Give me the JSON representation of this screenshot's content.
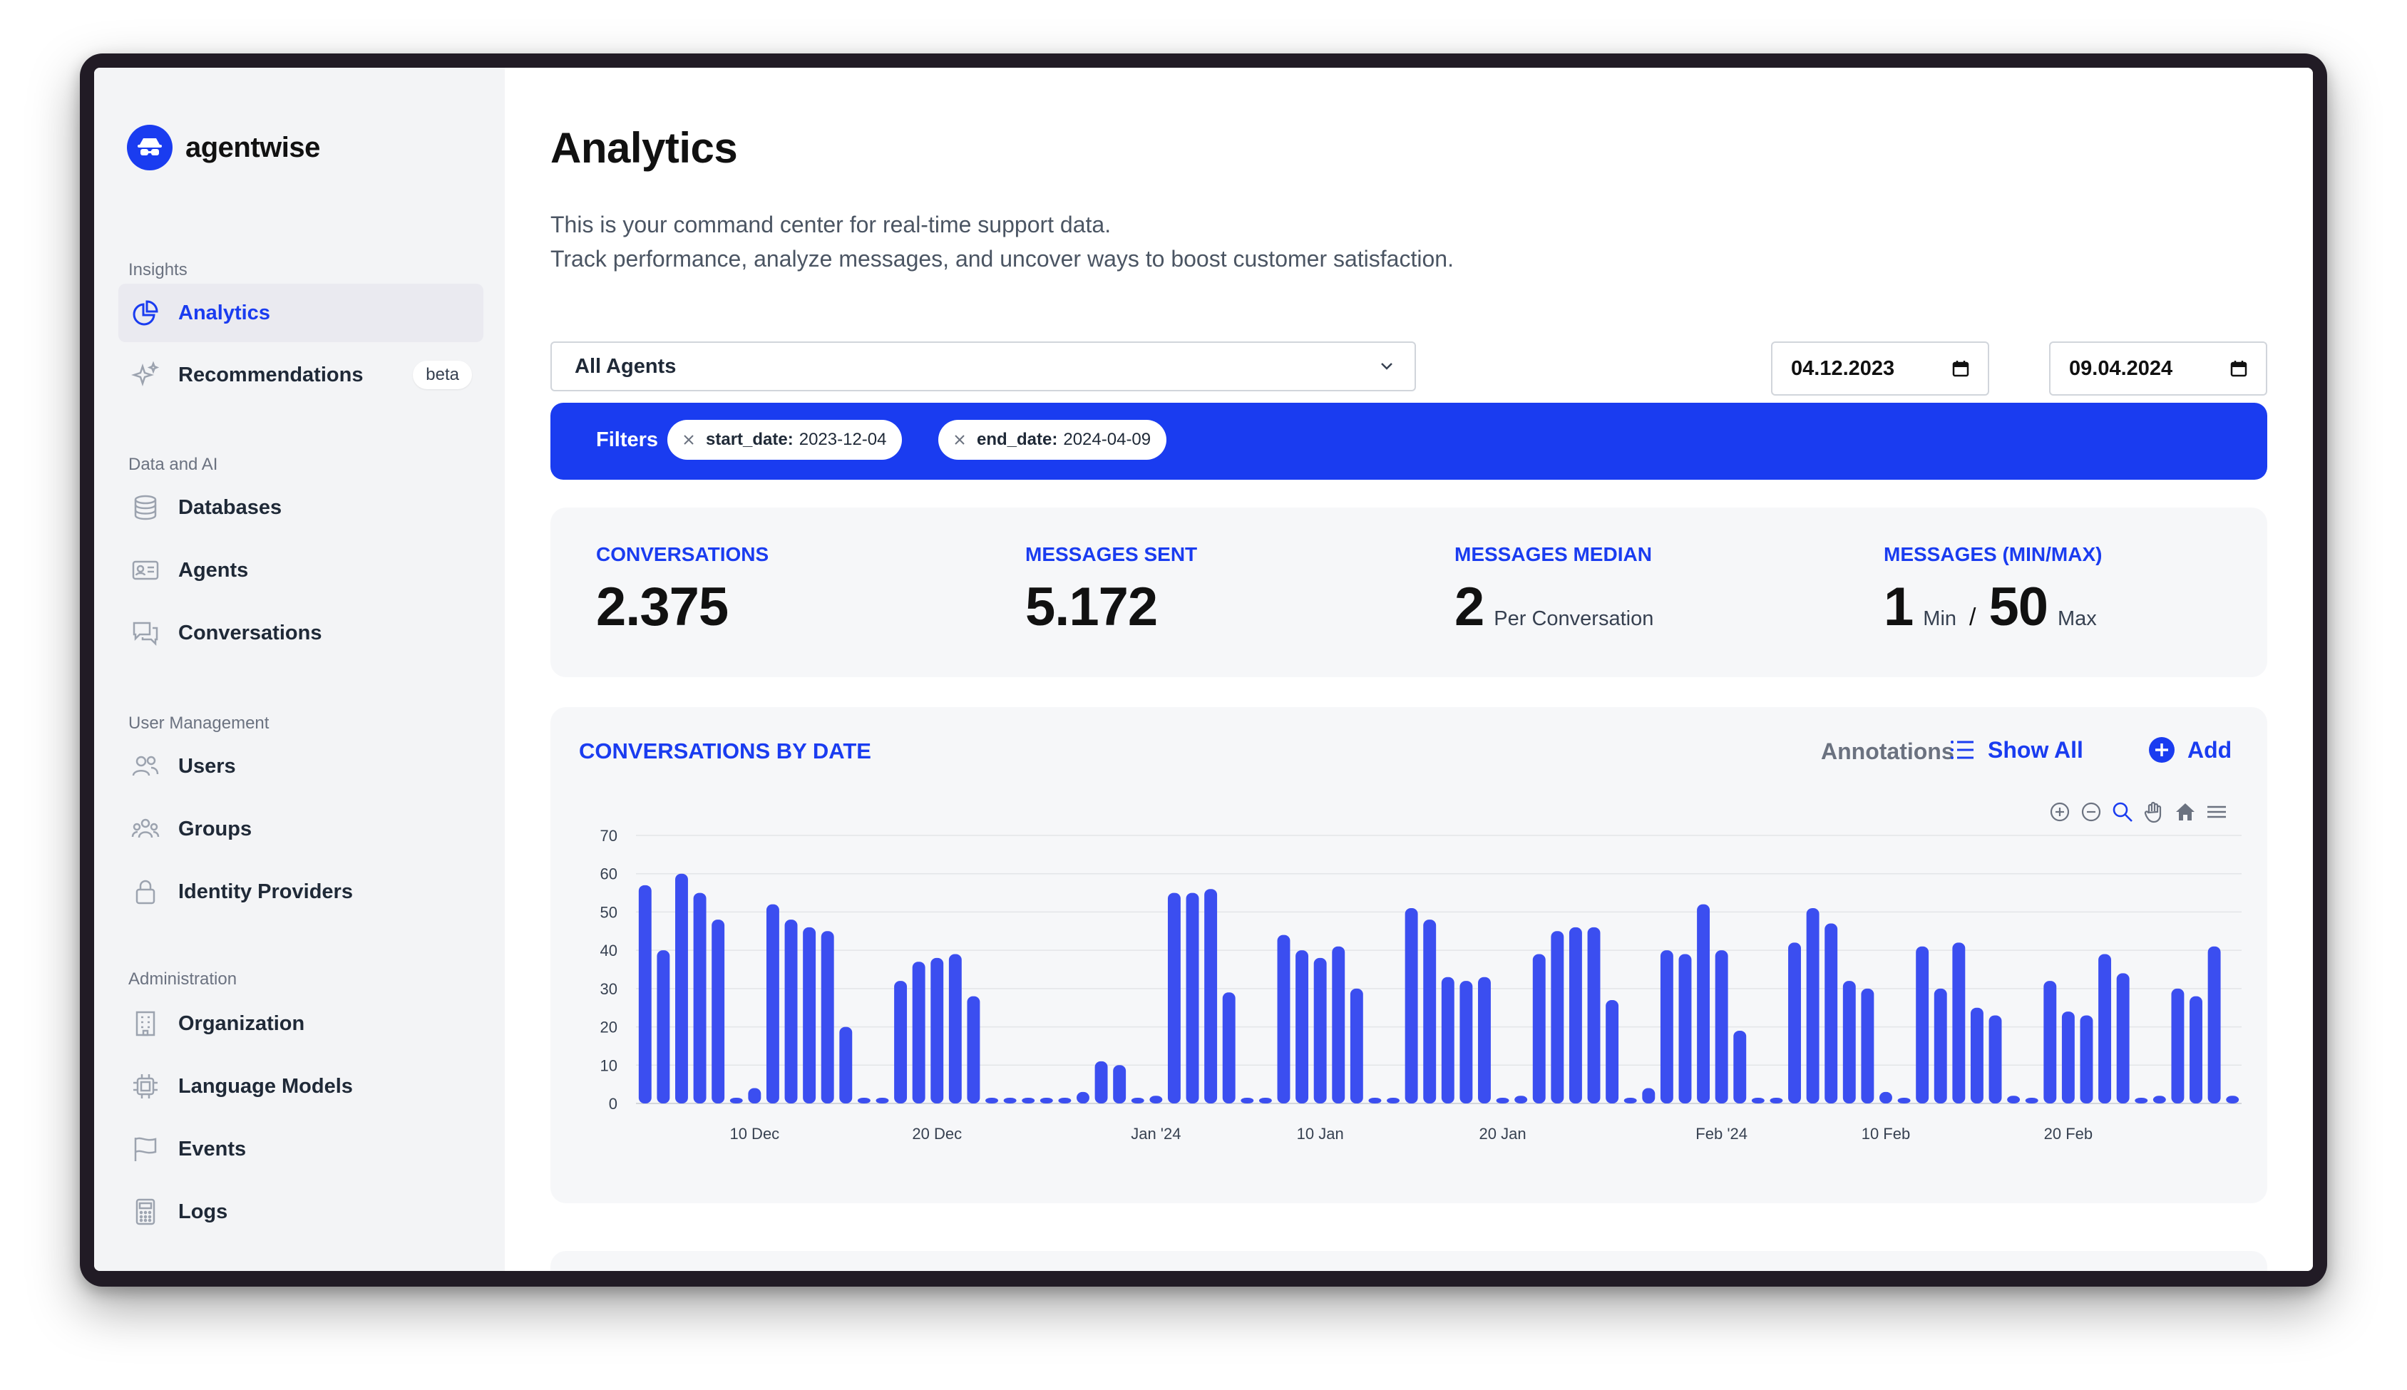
{
  "app": {
    "name": "agentwise"
  },
  "sidebar": {
    "sections": [
      {
        "label": "Insights"
      },
      {
        "label": "Data and AI"
      },
      {
        "label": "User Management"
      },
      {
        "label": "Administration"
      }
    ],
    "items": [
      {
        "label": "Analytics",
        "icon": "pie-chart-icon",
        "active": true
      },
      {
        "label": "Recommendations",
        "icon": "sparkles-icon",
        "badge": "beta"
      },
      {
        "label": "Databases",
        "icon": "database-icon"
      },
      {
        "label": "Agents",
        "icon": "id-card-icon"
      },
      {
        "label": "Conversations",
        "icon": "chat-bubbles-icon"
      },
      {
        "label": "Users",
        "icon": "users-icon"
      },
      {
        "label": "Groups",
        "icon": "group-icon"
      },
      {
        "label": "Identity Providers",
        "icon": "lock-icon"
      },
      {
        "label": "Organization",
        "icon": "building-icon"
      },
      {
        "label": "Language Models",
        "icon": "cpu-chip-icon"
      },
      {
        "label": "Events",
        "icon": "flag-icon"
      },
      {
        "label": "Logs",
        "icon": "calculator-icon"
      }
    ]
  },
  "page": {
    "title": "Analytics",
    "description_line1": "This is your command center for real-time support data.",
    "description_line2": "Track performance, analyze messages, and uncover ways to boost customer satisfaction."
  },
  "controls": {
    "agent_select": "All Agents",
    "start_date": "04.12.2023",
    "date_separator": "-",
    "end_date": "09.04.2024"
  },
  "filters": {
    "label": "Filters",
    "chips": [
      {
        "key": "start_date:",
        "value": "2023-12-04"
      },
      {
        "key": "end_date:",
        "value": "2024-04-09"
      }
    ]
  },
  "stats": {
    "conversations": {
      "title": "CONVERSATIONS",
      "value": "2.375"
    },
    "messages_sent": {
      "title": "MESSAGES SENT",
      "value": "5.172"
    },
    "messages_median": {
      "title": "MESSAGES MEDIAN",
      "value": "2",
      "suffix": "Per Conversation"
    },
    "messages_minmax": {
      "title": "MESSAGES (MIN/MAX)",
      "min": "1",
      "min_label": "Min",
      "sep": "/",
      "max": "50",
      "max_label": "Max"
    }
  },
  "chart_card": {
    "title": "CONVERSATIONS BY DATE",
    "annotations_label": "Annotations",
    "show_all_label": "Show All",
    "add_label": "Add"
  },
  "colors": {
    "accent": "#1a3cf0",
    "bar": "#3b4ef0"
  },
  "chart_data": {
    "type": "bar",
    "ylim": [
      0,
      70
    ],
    "yticks": [
      0,
      10,
      20,
      30,
      40,
      50,
      60,
      70
    ],
    "grid": true,
    "xtick_labels": [
      {
        "label": "10 Dec",
        "index": 6
      },
      {
        "label": "20 Dec",
        "index": 16
      },
      {
        "label": "Jan '24",
        "index": 28
      },
      {
        "label": "10 Jan",
        "index": 37
      },
      {
        "label": "20 Jan",
        "index": 47
      },
      {
        "label": "Feb '24",
        "index": 59
      },
      {
        "label": "10 Feb",
        "index": 68
      },
      {
        "label": "20 Feb",
        "index": 78
      }
    ],
    "values": [
      57,
      40,
      60,
      55,
      48,
      1,
      4,
      52,
      48,
      46,
      45,
      20,
      0,
      1,
      32,
      37,
      38,
      39,
      28,
      1,
      0,
      0,
      0,
      1,
      3,
      11,
      10,
      0,
      2,
      55,
      55,
      56,
      29,
      1,
      0,
      44,
      40,
      38,
      41,
      30,
      0,
      1,
      51,
      48,
      33,
      32,
      33,
      1,
      2,
      39,
      45,
      46,
      46,
      27,
      0,
      4,
      40,
      39,
      52,
      40,
      19,
      1,
      1,
      42,
      51,
      47,
      32,
      30,
      3,
      0,
      41,
      30,
      42,
      25,
      23,
      2,
      0,
      32,
      24,
      23,
      39,
      34,
      1,
      2,
      30,
      28,
      41,
      2
    ]
  }
}
